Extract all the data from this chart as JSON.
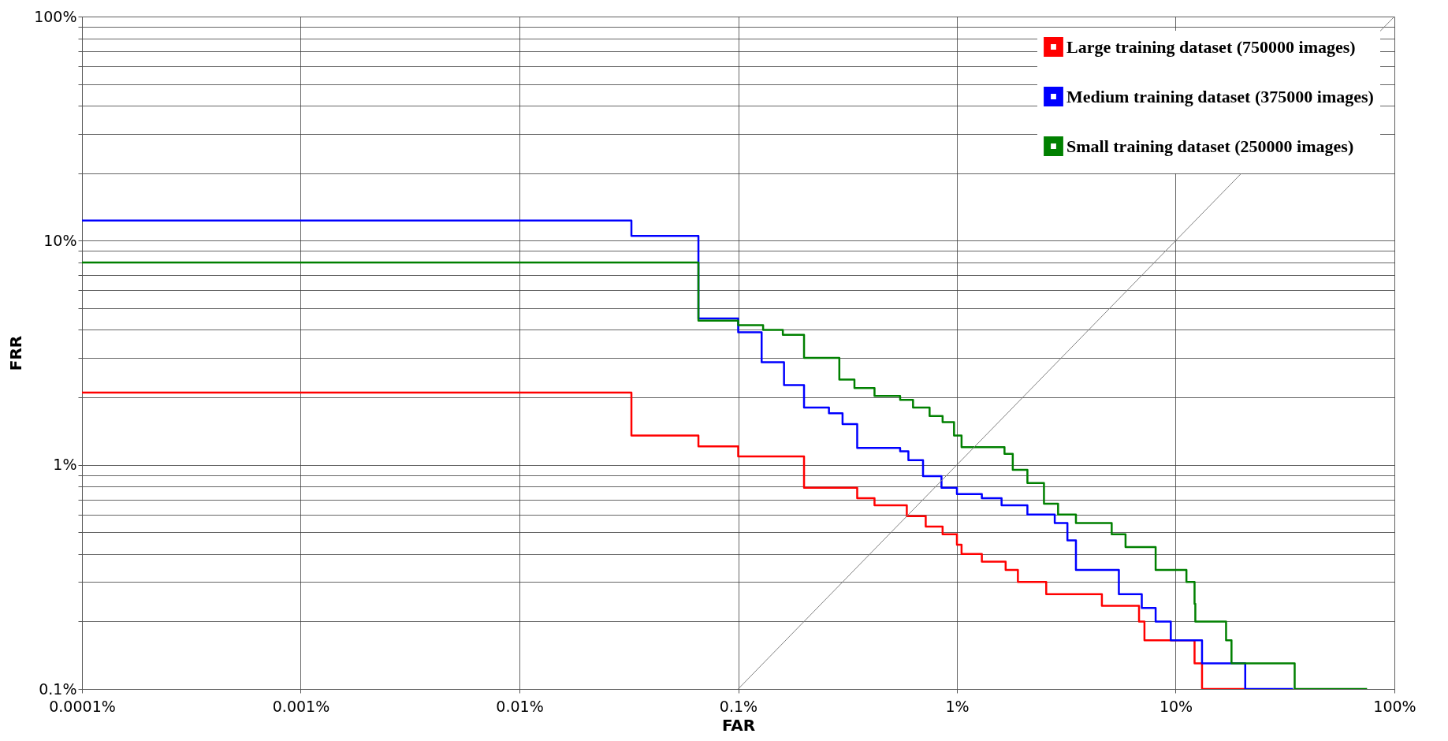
{
  "chart_data": {
    "type": "step",
    "xlabel": "FAR",
    "ylabel": "FRR",
    "legend": "top right",
    "grid": true,
    "log": "xy",
    "xlim": [
      0.0001,
      100
    ],
    "ylim": [
      0.1,
      100
    ],
    "xticks": [
      {
        "value": 0.0001,
        "label": "0.0001%"
      },
      {
        "value": 0.001,
        "label": "0.001%"
      },
      {
        "value": 0.01,
        "label": "0.01%"
      },
      {
        "value": 0.1,
        "label": "0.1%"
      },
      {
        "value": 1,
        "label": "1%"
      },
      {
        "value": 10,
        "label": "10%"
      },
      {
        "value": 100,
        "label": "100%"
      }
    ],
    "yticks": [
      {
        "value": 0.1,
        "label": "0.1%"
      },
      {
        "value": 0.2,
        "label": null
      },
      {
        "value": 0.3,
        "label": null
      },
      {
        "value": 0.4,
        "label": null
      },
      {
        "value": 0.5,
        "label": null
      },
      {
        "value": 0.6,
        "label": null
      },
      {
        "value": 0.7,
        "label": null
      },
      {
        "value": 0.8,
        "label": null
      },
      {
        "value": 0.9,
        "label": null
      },
      {
        "value": 1,
        "label": "1%"
      },
      {
        "value": 2,
        "label": null
      },
      {
        "value": 3,
        "label": null
      },
      {
        "value": 4,
        "label": null
      },
      {
        "value": 5,
        "label": null
      },
      {
        "value": 6,
        "label": null
      },
      {
        "value": 7,
        "label": null
      },
      {
        "value": 8,
        "label": null
      },
      {
        "value": 9,
        "label": null
      },
      {
        "value": 10,
        "label": "10%"
      },
      {
        "value": 20,
        "label": null
      },
      {
        "value": 30,
        "label": null
      },
      {
        "value": 40,
        "label": null
      },
      {
        "value": 50,
        "label": null
      },
      {
        "value": 60,
        "label": null
      },
      {
        "value": 70,
        "label": null
      },
      {
        "value": 80,
        "label": null
      },
      {
        "value": 90,
        "label": null
      },
      {
        "value": 100,
        "label": "100%"
      }
    ],
    "series": [
      {
        "name": "Large training dataset (750000 images)",
        "color": "#ff0000",
        "x": [
          0.0001,
          0.0325,
          0.0658,
          0.1,
          0.2,
          0.35,
          0.42,
          0.59,
          0.72,
          0.86,
          1.0,
          1.05,
          1.3,
          1.67,
          1.9,
          2.56,
          4.6,
          6.8,
          7.2,
          12.2,
          13.2,
          20.8
        ],
        "values": [
          2.1,
          1.35,
          1.21,
          1.09,
          0.79,
          0.71,
          0.66,
          0.59,
          0.53,
          0.49,
          0.44,
          0.4,
          0.37,
          0.34,
          0.3,
          0.265,
          0.235,
          0.2,
          0.165,
          0.13,
          0.1,
          0.1
        ]
      },
      {
        "name": "Medium training dataset (375000 images)",
        "color": "#0000ff",
        "x": [
          0.0001,
          0.0325,
          0.0658,
          0.1,
          0.128,
          0.162,
          0.2,
          0.26,
          0.3,
          0.35,
          0.55,
          0.6,
          0.7,
          0.85,
          1.0,
          1.3,
          1.6,
          2.1,
          2.8,
          3.2,
          3.5,
          5.5,
          7.0,
          8.1,
          9.5,
          13.2,
          20.8,
          34.4
        ],
        "values": [
          12.3,
          10.5,
          4.5,
          3.9,
          2.87,
          2.27,
          1.8,
          1.7,
          1.52,
          1.19,
          1.15,
          1.05,
          0.89,
          0.79,
          0.74,
          0.71,
          0.66,
          0.6,
          0.55,
          0.46,
          0.34,
          0.265,
          0.23,
          0.2,
          0.165,
          0.13,
          0.1,
          0.1
        ]
      },
      {
        "name": "Small training dataset (250000 images)",
        "color": "#008000",
        "x": [
          0.0001,
          0.0658,
          0.1,
          0.13,
          0.16,
          0.2,
          0.29,
          0.34,
          0.42,
          0.55,
          0.63,
          0.75,
          0.86,
          0.97,
          1.05,
          1.65,
          1.8,
          2.1,
          2.5,
          2.9,
          3.5,
          5.1,
          5.9,
          8.1,
          11.2,
          12.2,
          12.3,
          17.0,
          18.0,
          35.0,
          75.0
        ],
        "values": [
          8.0,
          4.4,
          4.2,
          4.0,
          3.8,
          3.0,
          2.4,
          2.2,
          2.03,
          1.95,
          1.8,
          1.65,
          1.55,
          1.35,
          1.2,
          1.12,
          0.95,
          0.83,
          0.67,
          0.6,
          0.55,
          0.49,
          0.43,
          0.34,
          0.3,
          0.24,
          0.2,
          0.165,
          0.13,
          0.1,
          0.1
        ]
      },
      {
        "type": "line",
        "color": "#808080",
        "x": [
          0.1,
          100
        ],
        "values": [
          0.1,
          100
        ]
      }
    ]
  }
}
